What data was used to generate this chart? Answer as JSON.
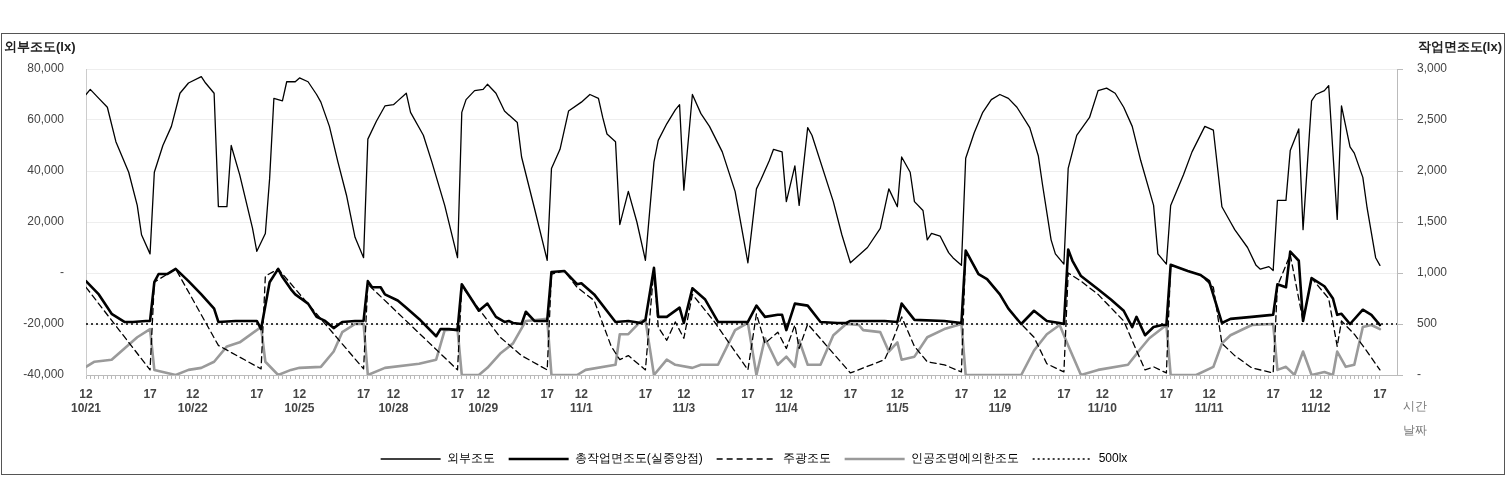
{
  "chart_data": {
    "type": "line",
    "ylabel": "외부조도(lx)",
    "y2label": "작업면조도(lx)",
    "xlabel": "시간",
    "annotations": [
      "날짜"
    ],
    "categories": [
      "12\n10/21",
      null,
      null,
      null,
      null,
      null,
      null,
      null,
      null,
      null,
      null,
      null,
      null,
      null,
      null,
      "17",
      null,
      null,
      null,
      null,
      null,
      null,
      null,
      null,
      null,
      "12\n10/22",
      null,
      null,
      null,
      null,
      null,
      null,
      null,
      null,
      null,
      null,
      null,
      null,
      null,
      null,
      "17",
      null,
      null,
      null,
      null,
      null,
      null,
      null,
      null,
      null,
      "12\n10/25",
      null,
      null,
      null,
      null,
      null,
      null,
      null,
      null,
      null,
      null,
      null,
      null,
      null,
      null,
      "17",
      null,
      null,
      null,
      null,
      null,
      null,
      "12\n10/28",
      null,
      null,
      null,
      null,
      null,
      null,
      null,
      null,
      null,
      null,
      null,
      null,
      null,
      null,
      "17",
      null,
      null,
      null,
      null,
      null,
      "12\n10/29",
      null,
      null,
      null,
      null,
      null,
      null,
      null,
      null,
      null,
      null,
      null,
      null,
      null,
      null,
      "17",
      null,
      null,
      null,
      null,
      null,
      null,
      null,
      "12\n11/1",
      null,
      null,
      null,
      null,
      null,
      null,
      null,
      null,
      null,
      null,
      null,
      null,
      null,
      null,
      "17",
      null,
      null,
      null,
      null,
      null,
      null,
      null,
      null,
      "12\n11/3",
      null,
      null,
      null,
      null,
      null,
      null,
      null,
      null,
      null,
      null,
      null,
      null,
      null,
      null,
      "17",
      null,
      null,
      null,
      null,
      null,
      null,
      null,
      null,
      "12\n11/4",
      null,
      null,
      null,
      null,
      null,
      null,
      null,
      null,
      null,
      null,
      null,
      null,
      null,
      null,
      "17",
      null,
      null,
      null,
      null,
      null,
      null,
      null,
      null,
      null,
      null,
      "12\n11/5",
      null,
      null,
      null,
      null,
      null,
      null,
      null,
      null,
      null,
      null,
      null,
      null,
      null,
      null,
      "17",
      null,
      null,
      null,
      null,
      null,
      null,
      null,
      null,
      "12\n11/9",
      null,
      null,
      null,
      null,
      null,
      null,
      null,
      null,
      null,
      null,
      null,
      null,
      null,
      null,
      "17",
      null,
      null,
      null,
      null,
      null,
      null,
      null,
      null,
      "12\n11/10",
      null,
      null,
      null,
      null,
      null,
      null,
      null,
      null,
      null,
      null,
      null,
      null,
      null,
      null,
      "17",
      null,
      null,
      null,
      null,
      null,
      null,
      null,
      null,
      null,
      "12\n11/11",
      null,
      null,
      null,
      null,
      null,
      null,
      null,
      null,
      null,
      null,
      null,
      null,
      null,
      null,
      "17",
      null,
      null,
      null,
      null,
      null,
      null,
      null,
      null,
      null,
      "12\n11/12",
      null,
      null,
      null,
      null,
      null,
      null,
      null,
      null,
      null,
      null,
      null,
      null,
      null,
      null,
      "17"
    ],
    "ylim": [
      -40000,
      80000
    ],
    "yticks": [
      {
        "value": -40000,
        "label": "-40,000"
      },
      {
        "value": -20000,
        "label": "-20,000"
      },
      {
        "value": 0,
        "label": "-"
      },
      {
        "value": 20000,
        "label": "20,000"
      },
      {
        "value": 40000,
        "label": "40,000"
      },
      {
        "value": 60000,
        "label": "60,000"
      },
      {
        "value": 80000,
        "label": "80,000"
      }
    ],
    "y2lim": [
      0,
      3000
    ],
    "y2ticks": [
      {
        "value": 0,
        "label": "-"
      },
      500,
      {
        "value": 1000,
        "label": "1,000"
      },
      {
        "value": 1500,
        "label": "1,500"
      },
      {
        "value": 2000,
        "label": "2,000"
      },
      {
        "value": 2500,
        "label": "2,500"
      },
      {
        "value": 3000,
        "label": "3,000"
      }
    ],
    "grid": "y",
    "legend": "bottom",
    "ref_lines": [
      {
        "axis": "y2",
        "value": 500,
        "label": "500lx",
        "line_style": "dotted",
        "color": "#000000"
      }
    ],
    "series": [
      {
        "name": "외부조도",
        "color": "#000000",
        "line_style": "solid",
        "values": [
          70000,
          72000,
          null,
          68500,
          null,
          65000,
          null,
          51500,
          null,
          null,
          39500,
          null,
          26500,
          15000,
          null,
          7500,
          39500,
          null,
          50000,
          null,
          57500,
          null,
          70500,
          null,
          74500,
          null,
          null,
          77000,
          74500,
          null,
          70500,
          26000,
          null,
          26000,
          50000,
          null,
          38500,
          null,
          null,
          17500,
          8500,
          null,
          15500,
          37000,
          68500,
          null,
          67500,
          75000,
          null,
          75000,
          76500,
          null,
          75000,
          null,
          70000,
          67000,
          null,
          57500,
          null,
          43500,
          null,
          30500,
          null,
          14000,
          null,
          6000,
          52500,
          null,
          59500,
          null,
          65500,
          null,
          66000,
          67500,
          null,
          70500,
          63000,
          null,
          null,
          54000,
          null,
          43500,
          null,
          null,
          26500,
          null,
          null,
          6000,
          63000,
          68000,
          null,
          71500,
          null,
          72000,
          74000,
          null,
          70500,
          null,
          63500,
          null,
          null,
          59000,
          45500,
          null,
          null,
          25500,
          null,
          null,
          5000,
          41000,
          null,
          48500,
          null,
          63500,
          null,
          null,
          67000,
          null,
          70000,
          null,
          68500,
          61000,
          54500,
          null,
          51500,
          19000,
          null,
          32000,
          null,
          20000,
          null,
          5000,
          null,
          43500,
          52000,
          null,
          58500,
          null,
          64000,
          66000,
          32500,
          null,
          70000,
          null,
          62500,
          null,
          57500,
          null,
          null,
          47500,
          null,
          null,
          32000,
          null,
          null,
          4000,
          null,
          33000,
          36500,
          null,
          44000,
          48500,
          null,
          47500,
          28000,
          null,
          42000,
          26500,
          null,
          57000,
          54000,
          null,
          null,
          null,
          null,
          28000,
          null,
          15000,
          null,
          4000,
          null,
          null,
          null,
          10000,
          null,
          null,
          17500,
          null,
          33000,
          null,
          26000,
          45500,
          null,
          39500,
          28000,
          null,
          24500,
          13000,
          15500,
          null,
          14500,
          null,
          8000,
          6000,
          null,
          3000,
          45000,
          null,
          55000,
          null,
          63000,
          null,
          68000,
          null,
          70000,
          null,
          68500,
          null,
          65000,
          null,
          null,
          57000,
          null,
          46000,
          34500,
          null,
          13000,
          7500,
          null,
          3500,
          41000,
          null,
          54000,
          null,
          null,
          61000,
          null,
          71500,
          null,
          72500,
          null,
          70500,
          null,
          65000,
          null,
          57500,
          null,
          44000,
          null,
          null,
          26500,
          7500,
          null,
          3500,
          26500,
          null,
          null,
          38500,
          null,
          47500,
          null,
          null,
          57500,
          null,
          56000,
          null,
          26000,
          null,
          20000,
          17000,
          null,
          null,
          10000,
          null,
          3000,
          1500,
          null,
          2500,
          1000,
          28500,
          null,
          28500,
          48000,
          null,
          56500,
          17000,
          null,
          67500,
          70000,
          null,
          71500,
          73500,
          null,
          21000,
          65500,
          null,
          49500,
          47000,
          null,
          37500,
          25500,
          null,
          6000,
          3000
        ]
      },
      {
        "name": "총작업면조도(실중앙점)",
        "color": "#000000",
        "line_style": "solid",
        "axis": "y2",
        "values": [
          920,
          null,
          null,
          790,
          null,
          null,
          600,
          null,
          null,
          520,
          null,
          520,
          null,
          null,
          530,
          530,
          910,
          990,
          null,
          990,
          null,
          1040,
          null,
          null,
          920,
          null,
          null,
          790,
          null,
          null,
          650,
          520,
          null,
          null,
          null,
          530,
          null,
          null,
          null,
          null,
          530,
          450,
          null,
          910,
          null,
          1040,
          960,
          null,
          840,
          790,
          null,
          null,
          700,
          null,
          570,
          null,
          530,
          null,
          460,
          null,
          520,
          null,
          null,
          530,
          null,
          530,
          920,
          860,
          null,
          860,
          790,
          null,
          null,
          730,
          null,
          660,
          null,
          null,
          550,
          null,
          null,
          null,
          380,
          450,
          null,
          450,
          null,
          440,
          890,
          null,
          760,
          null,
          630,
          null,
          700,
          null,
          570,
          null,
          520,
          530,
          510,
          null,
          500,
          620,
          null,
          530,
          null,
          null,
          530,
          1010,
          null,
          null,
          1020,
          null,
          null,
          890,
          900,
          null,
          null,
          790,
          null,
          null,
          null,
          null,
          520,
          null,
          null,
          530,
          null,
          null,
          510,
          540,
          null,
          1050,
          570,
          null,
          570,
          null,
          null,
          660,
          510,
          null,
          850,
          null,
          null,
          740,
          null,
          null,
          520,
          null,
          null,
          null,
          520,
          null,
          null,
          520,
          null,
          680,
          null,
          570,
          null,
          null,
          590,
          590,
          440,
          null,
          700,
          null,
          null,
          680,
          null,
          null,
          520,
          null,
          null,
          null,
          510,
          null,
          510,
          530,
          null,
          null,
          null,
          530,
          null,
          null,
          null,
          530,
          null,
          null,
          520,
          700,
          null,
          null,
          540,
          null,
          null,
          null,
          null,
          null,
          null,
          530,
          null,
          null,
          null,
          510,
          1220,
          null,
          null,
          990,
          null,
          940,
          null,
          null,
          790,
          null,
          650,
          null,
          null,
          500,
          null,
          null,
          630,
          null,
          null,
          530,
          null,
          null,
          510,
          500,
          1230,
          1120,
          null,
          970,
          null,
          null,
          null,
          840,
          null,
          null,
          740,
          null,
          null,
          630,
          null,
          470,
          570,
          null,
          390,
          null,
          470,
          null,
          490,
          490,
          1080,
          null,
          null,
          null,
          1020,
          null,
          null,
          980,
          null,
          920,
          null,
          null,
          510,
          null,
          550,
          null,
          null,
          null,
          null,
          570,
          null,
          null,
          null,
          null,
          590,
          890,
          null,
          860,
          1210,
          null,
          1120,
          530,
          null,
          950,
          null,
          null,
          870,
          null,
          750,
          590,
          600,
          null,
          500,
          null,
          null,
          640,
          null,
          590,
          null,
          490
        ]
      },
      {
        "name": "주광조도",
        "color": "#000000",
        "line_style": "dashed",
        "axis": "y2",
        "values": [
          860,
          null,
          null,
          null,
          null,
          null,
          null,
          null,
          null,
          null,
          null,
          null,
          null,
          null,
          null,
          50,
          910,
          null,
          null,
          null,
          null,
          1040,
          null,
          null,
          null,
          null,
          null,
          null,
          null,
          null,
          null,
          290,
          null,
          null,
          null,
          null,
          null,
          null,
          null,
          null,
          null,
          60,
          970,
          null,
          null,
          1040,
          null,
          null,
          null,
          null,
          null,
          null,
          null,
          null,
          null,
          null,
          null,
          null,
          null,
          null,
          null,
          null,
          null,
          null,
          null,
          60,
          890,
          null,
          null,
          null,
          null,
          null,
          null,
          null,
          null,
          null,
          null,
          null,
          null,
          null,
          null,
          null,
          null,
          null,
          null,
          null,
          null,
          50,
          870,
          null,
          null,
          null,
          null,
          null,
          null,
          null,
          null,
          370,
          null,
          null,
          null,
          null,
          190,
          null,
          null,
          null,
          null,
          null,
          50,
          990,
          null,
          null,
          1020,
          null,
          null,
          860,
          null,
          null,
          null,
          730,
          null,
          null,
          null,
          280,
          null,
          150,
          null,
          190,
          null,
          null,
          null,
          50,
          null,
          1050,
          470,
          null,
          340,
          null,
          520,
          null,
          360,
          null,
          790,
          null,
          null,
          null,
          null,
          530,
          null,
          null,
          null,
          null,
          null,
          null,
          null,
          50,
          null,
          600,
          null,
          310,
          null,
          null,
          420,
          null,
          260,
          null,
          490,
          260,
          null,
          500,
          null,
          null,
          null,
          null,
          null,
          null,
          null,
          null,
          null,
          20,
          null,
          null,
          null,
          null,
          null,
          null,
          null,
          150,
          240,
          null,
          null,
          570,
          null,
          null,
          280,
          null,
          null,
          130,
          null,
          null,
          null,
          100,
          null,
          null,
          null,
          30,
          1220,
          null,
          null,
          990,
          null,
          940,
          null,
          null,
          790,
          null,
          650,
          null,
          null,
          500,
          null,
          null,
          370,
          null,
          null,
          110,
          null,
          null,
          null,
          30,
          1000,
          null,
          null,
          920,
          null,
          null,
          null,
          790,
          null,
          null,
          null,
          null,
          null,
          530,
          null,
          null,
          240,
          null,
          50,
          null,
          80,
          null,
          null,
          20,
          1080,
          null,
          null,
          null,
          1020,
          null,
          null,
          980,
          null,
          null,
          860,
          null,
          310,
          null,
          null,
          190,
          null,
          null,
          null,
          70,
          null,
          null,
          null,
          null,
          20,
          870,
          null,
          null,
          1180,
          null,
          null,
          530,
          null,
          950,
          null,
          null,
          null,
          750,
          null,
          280,
          530,
          null,
          null,
          400,
          null,
          null,
          230,
          null,
          null,
          50
        ]
      },
      {
        "name": "인공조명에의한조도",
        "color": "#9a9a9a",
        "line_style": "solid",
        "axis": "y2",
        "values": [
          80,
          null,
          130,
          null,
          null,
          null,
          150,
          null,
          null,
          260,
          null,
          null,
          370,
          null,
          null,
          450,
          50,
          null,
          null,
          20,
          null,
          0,
          null,
          null,
          50,
          null,
          null,
          70,
          null,
          null,
          130,
          null,
          null,
          280,
          null,
          null,
          320,
          null,
          null,
          null,
          null,
          470,
          130,
          null,
          null,
          0,
          null,
          null,
          50,
          null,
          70,
          null,
          null,
          null,
          null,
          80,
          null,
          null,
          230,
          null,
          420,
          null,
          null,
          500,
          null,
          500,
          0,
          null,
          null,
          null,
          70,
          null,
          null,
          null,
          null,
          null,
          null,
          null,
          110,
          null,
          null,
          null,
          150,
          null,
          440,
          null,
          null,
          450,
          0,
          null,
          null,
          null,
          0,
          null,
          70,
          null,
          null,
          210,
          null,
          null,
          310,
          null,
          null,
          530,
          null,
          null,
          null,
          null,
          550,
          0,
          null,
          null,
          null,
          null,
          null,
          0,
          null,
          50,
          null,
          null,
          null,
          null,
          null,
          null,
          100,
          400,
          null,
          400,
          null,
          null,
          530,
          540,
          null,
          0,
          null,
          null,
          150,
          null,
          100,
          null,
          null,
          null,
          70,
          null,
          100,
          null,
          null,
          null,
          100,
          null,
          null,
          null,
          440,
          null,
          null,
          510,
          null,
          0,
          null,
          360,
          null,
          null,
          100,
          null,
          180,
          null,
          80,
          340,
          null,
          100,
          null,
          null,
          100,
          null,
          null,
          390,
          null,
          null,
          500,
          null,
          null,
          490,
          440,
          null,
          null,
          null,
          420,
          null,
          230,
          null,
          320,
          150,
          null,
          null,
          180,
          null,
          null,
          370,
          null,
          null,
          null,
          450,
          null,
          null,
          null,
          500,
          0,
          null,
          null,
          null,
          null,
          null,
          null,
          null,
          null,
          null,
          null,
          null,
          null,
          0,
          null,
          null,
          240,
          null,
          null,
          400,
          null,
          null,
          490,
          null,
          290,
          null,
          null,
          0,
          null,
          null,
          null,
          50,
          null,
          null,
          null,
          null,
          null,
          null,
          100,
          null,
          null,
          260,
          null,
          360,
          null,
          null,
          null,
          490,
          0,
          null,
          null,
          null,
          null,
          null,
          0,
          null,
          null,
          null,
          80,
          null,
          310,
          null,
          390,
          null,
          null,
          null,
          null,
          490,
          null,
          null,
          null,
          null,
          500,
          50,
          null,
          80,
          null,
          0,
          null,
          230,
          null,
          0,
          null,
          null,
          30,
          null,
          0,
          230,
          null,
          80,
          null,
          100,
          null,
          470,
          null,
          490,
          null,
          450
        ]
      }
    ]
  }
}
